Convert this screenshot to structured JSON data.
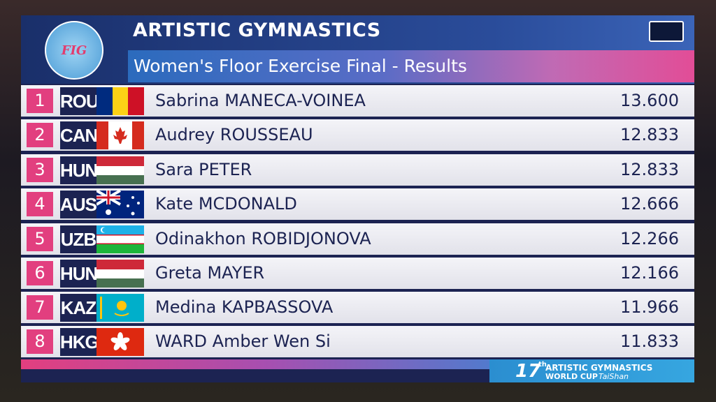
{
  "header": {
    "logo": "FIG",
    "title": "ARTISTIC GYMNASTICS",
    "subtitle": "Women's Floor Exercise Final - Results"
  },
  "rows": [
    {
      "rank": 1,
      "country": "ROU",
      "name": "Sabrina MANECA-VOINEA",
      "score": "13.600"
    },
    {
      "rank": 2,
      "country": "CAN",
      "name": "Audrey ROUSSEAU",
      "score": "12.833"
    },
    {
      "rank": 3,
      "country": "HUN",
      "name": "Sara PETER",
      "score": "12.833"
    },
    {
      "rank": 4,
      "country": "AUS",
      "name": "Kate MCDONALD",
      "score": "12.666"
    },
    {
      "rank": 5,
      "country": "UZB",
      "name": "Odinakhon ROBIDJONOVA",
      "score": "12.266"
    },
    {
      "rank": 6,
      "country": "HUN",
      "name": "Greta MAYER",
      "score": "12.166"
    },
    {
      "rank": 7,
      "country": "KAZ",
      "name": "Medina KAPBASSOVA",
      "score": "11.966"
    },
    {
      "rank": 8,
      "country": "HKG",
      "name": "WARD Amber Wen Si",
      "score": "11.833"
    }
  ],
  "footer": {
    "edition": "17",
    "ordinal": "th",
    "event": "ARTISTIC GYMNASTICS",
    "cup": "WORLD CUP",
    "city": "TaiShan"
  }
}
